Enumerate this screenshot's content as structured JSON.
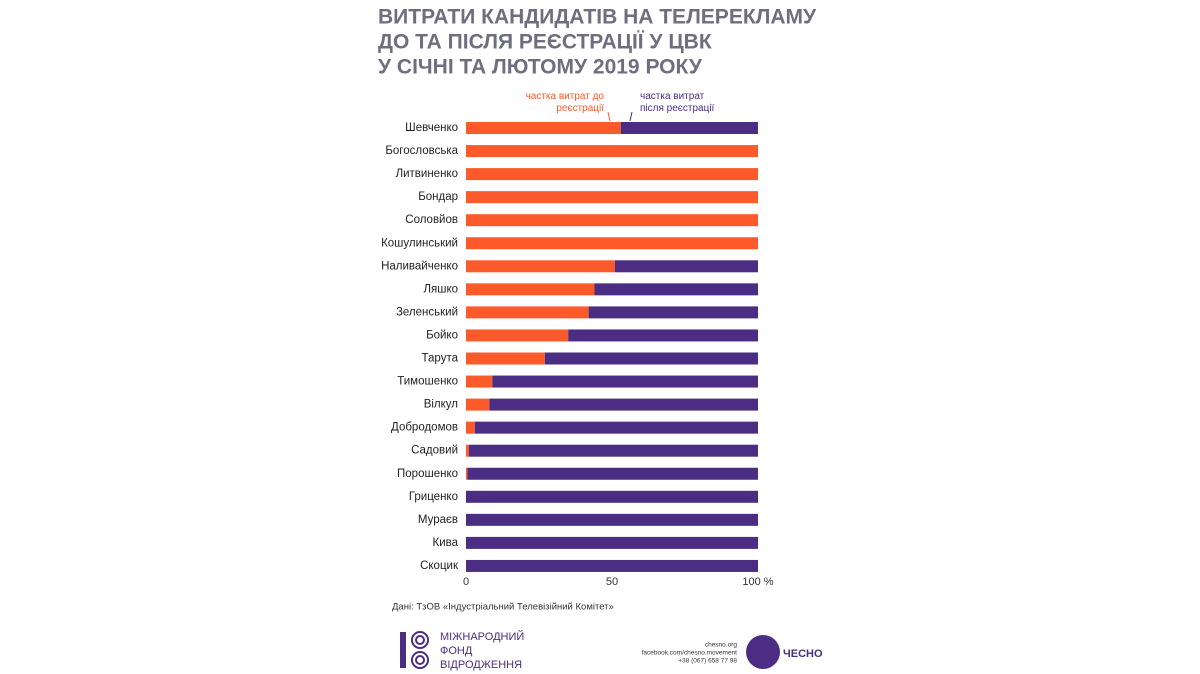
{
  "chart_data": {
    "type": "stacked-hbar",
    "title": [
      "ВИТРАТИ КАНДИДАТІВ НА ТЕЛЕРЕКЛАМУ",
      "ДО ТА ПІСЛЯ РЕЄСТРАЦІЇ У ЦВК",
      "У СІЧНІ ТА ЛЮТОМУ 2019 РОКУ"
    ],
    "categories": [
      "Шевченко",
      "Богословська",
      "Литвиненко",
      "Бондар",
      "Соловйов",
      "Кошулинський",
      "Наливайченко",
      "Ляшко",
      "Зеленський",
      "Бойко",
      "Тарута",
      "Тимошенко",
      "Вілкул",
      "Добродомов",
      "Садовий",
      "Порошенко",
      "Гриценко",
      "Мураєв",
      "Кива",
      "Скоцик"
    ],
    "series": [
      {
        "name": "частка витрат до реєстрації",
        "color": "#fc5a2a",
        "values": [
          53,
          100,
          100,
          100,
          100,
          100,
          51,
          44,
          42,
          35,
          27,
          9,
          8,
          3,
          1,
          0.5,
          0,
          0,
          0,
          0
        ]
      },
      {
        "name": "частка витрат після реєстрації",
        "color": "#4b2e83",
        "values": [
          47,
          0,
          0,
          0,
          0,
          0,
          49,
          56,
          58,
          65,
          73,
          91,
          92,
          97,
          99,
          99.5,
          100,
          100,
          100,
          100
        ]
      }
    ],
    "xlim": [
      0,
      100
    ],
    "xticks": [
      0,
      50,
      {
        "value": 100,
        "label": "100 %"
      }
    ],
    "source": "Дані: ТзОВ «Індустріальний Телевізійний Комітет»"
  },
  "footer": {
    "fund": [
      "МІЖНАРОДНИЙ",
      "ФОНД",
      "ВІДРОДЖЕННЯ"
    ],
    "contacts": [
      "chesno.org",
      "facebook.com/chesno.movement",
      "+38 (067) 658 77 98"
    ],
    "brand": "ЧЕСНО"
  }
}
